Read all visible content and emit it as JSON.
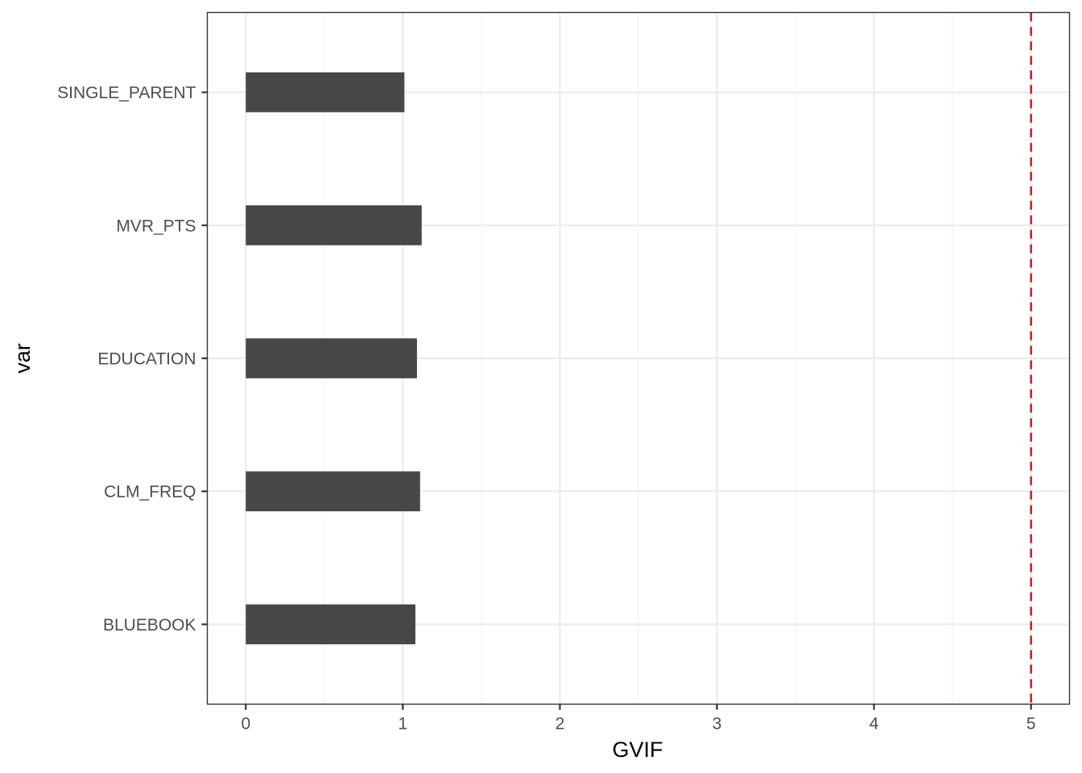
{
  "chart_data": {
    "type": "bar",
    "orientation": "horizontal",
    "categories": [
      "BLUEBOOK",
      "CLM_FREQ",
      "EDUCATION",
      "MVR_PTS",
      "SINGLE_PARENT"
    ],
    "values": [
      1.08,
      1.11,
      1.09,
      1.12,
      1.01
    ],
    "xlabel": "GVIF",
    "ylabel": "var",
    "xlim": [
      -0.245,
      5.245
    ],
    "xticks": [
      0,
      1,
      2,
      3,
      4,
      5
    ],
    "xtick_labels": [
      "0",
      "1",
      "2",
      "3",
      "4",
      "5"
    ],
    "grid": true,
    "reference_line": {
      "x": 5,
      "style": "dashed",
      "color": "#e41a1c"
    },
    "colors": {
      "bar": "#474747",
      "grid_major": "#ebebeb",
      "grid_minor": "#f2f2f2",
      "panel_border": "#333333"
    }
  }
}
